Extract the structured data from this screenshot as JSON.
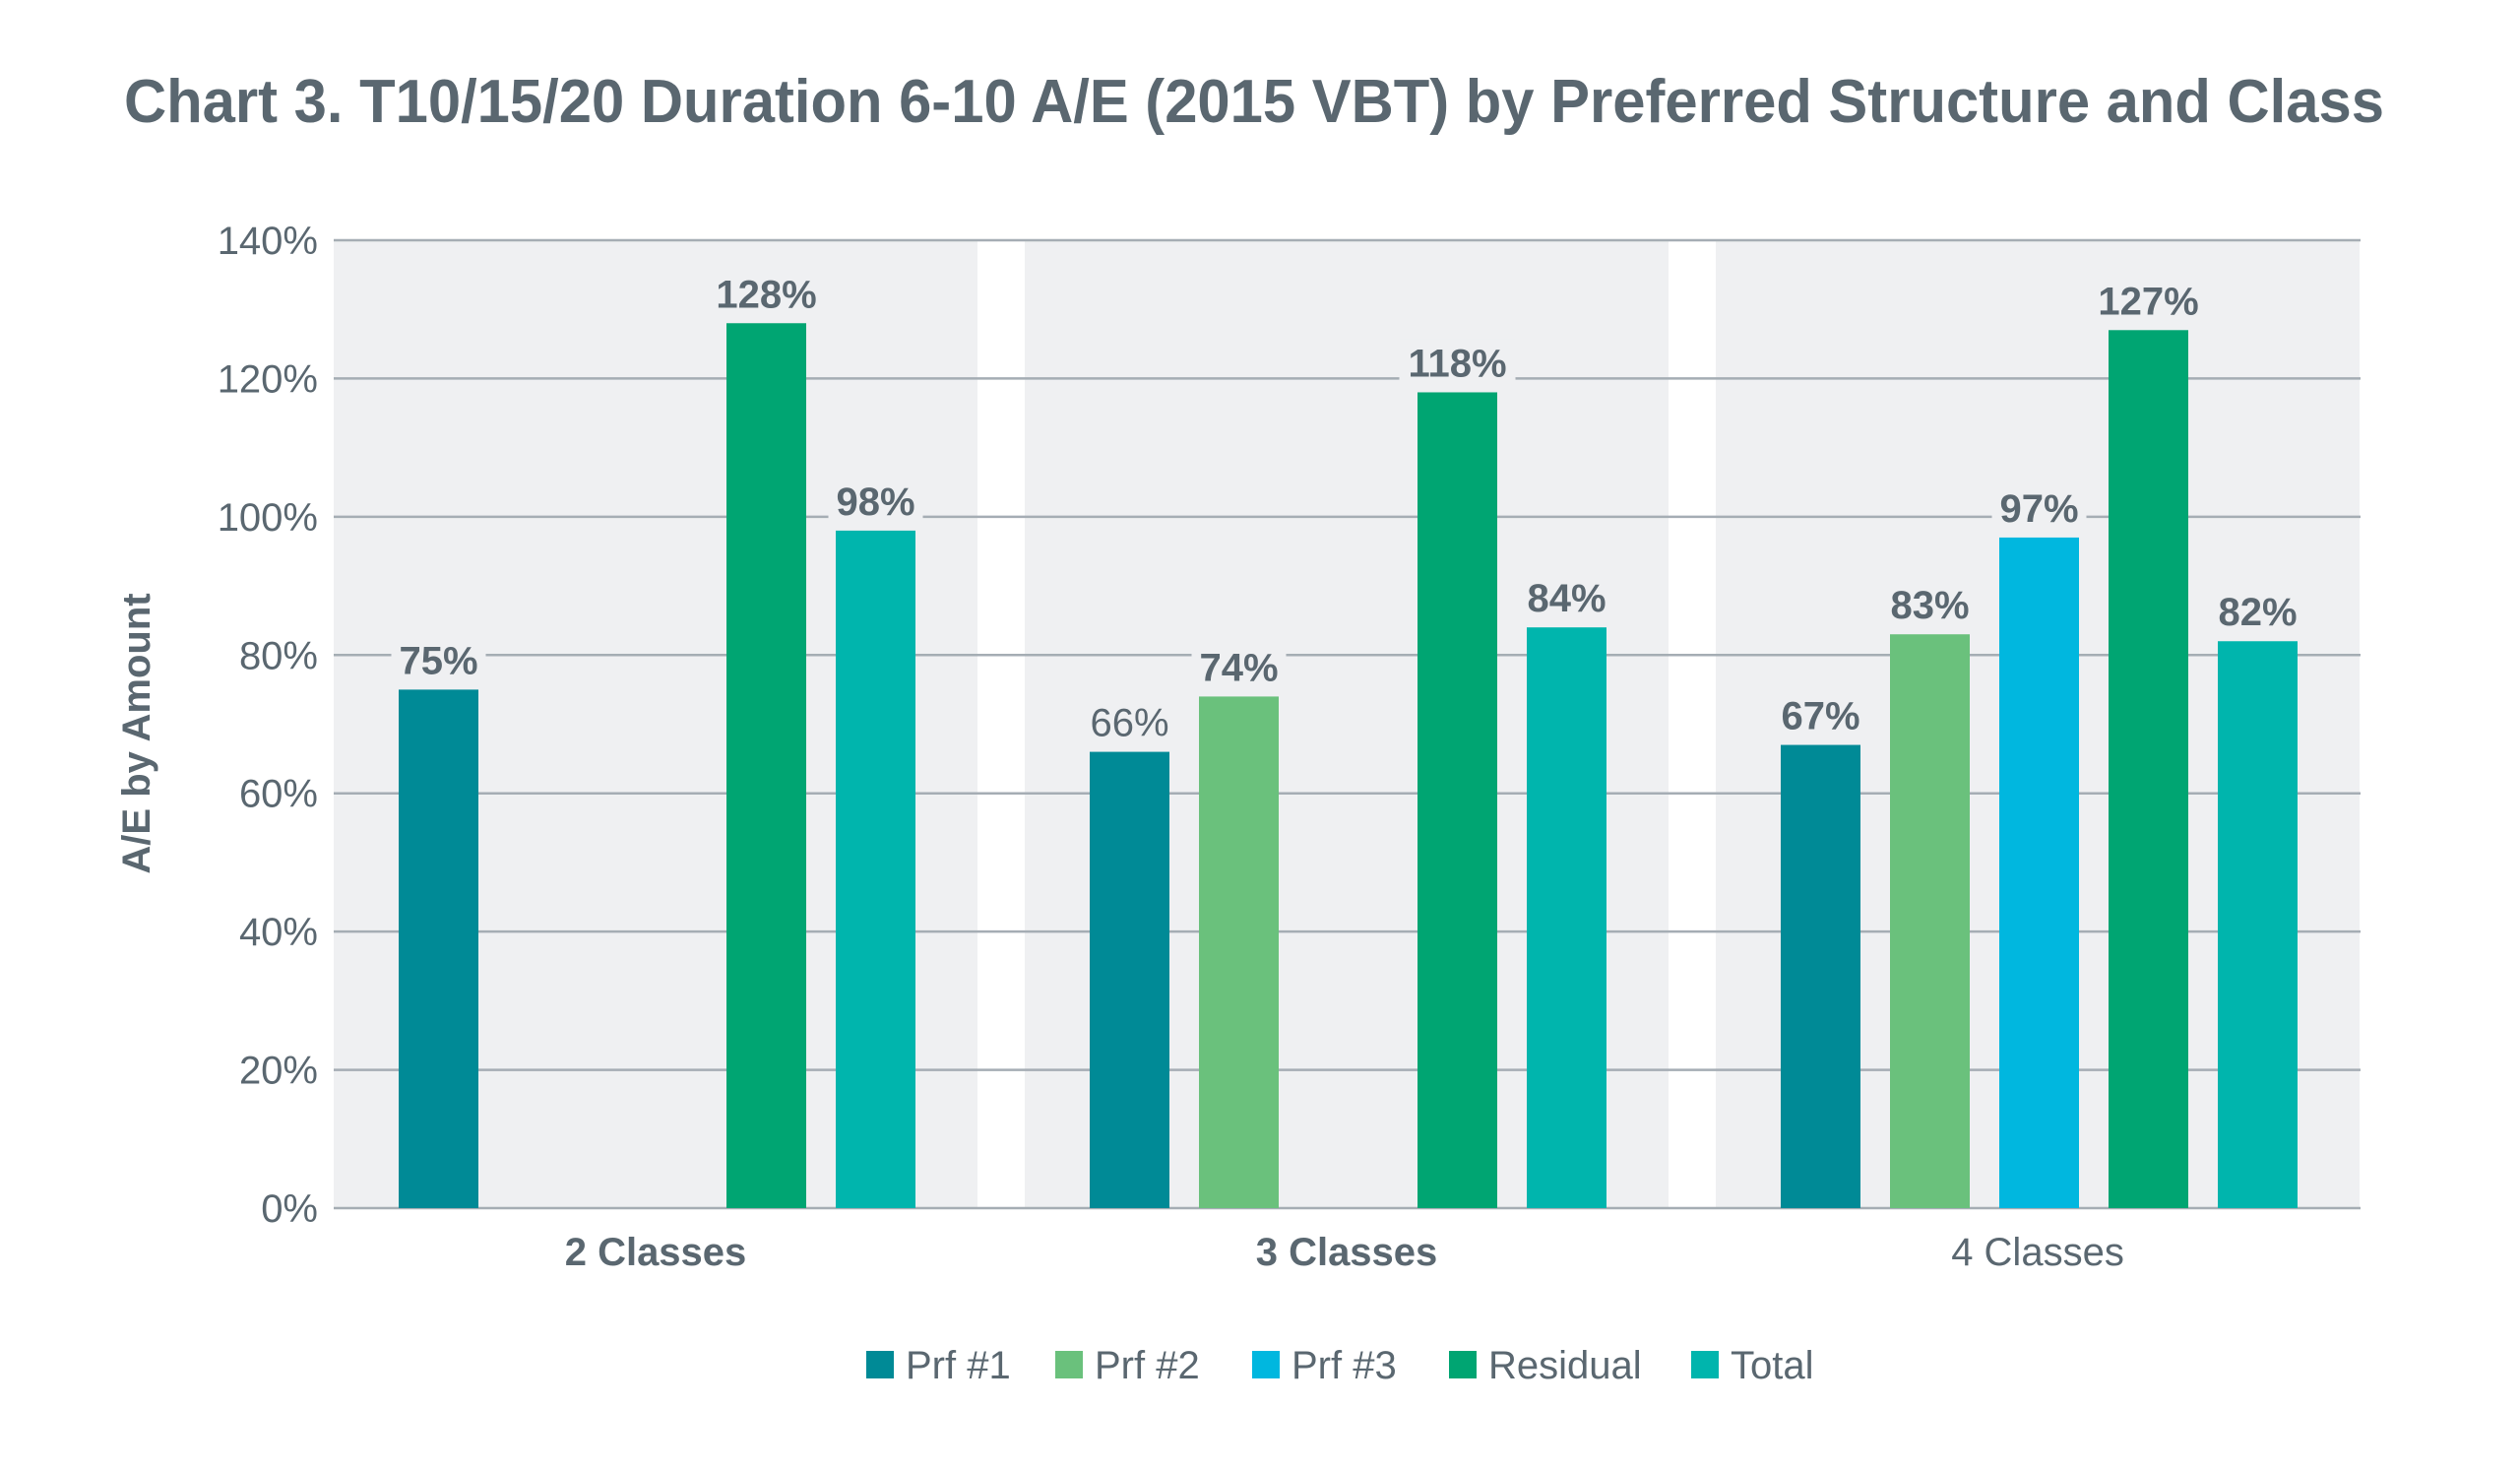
{
  "chart_data": {
    "type": "bar",
    "title": "Chart 3. T10/15/20 Duration 6-10 A/E (2015 VBT) by Preferred Structure and Class",
    "xlabel": "",
    "ylabel": "A/E by Amount",
    "ylim": [
      0,
      140
    ],
    "yticks": [
      0,
      20,
      40,
      60,
      80,
      100,
      120,
      140
    ],
    "ytick_labels": [
      "0%",
      "20%",
      "40%",
      "60%",
      "80%",
      "100%",
      "120%",
      "140%"
    ],
    "grid": true,
    "legend_position": "bottom-center",
    "categories": [
      "2 Classes",
      "3 Classes",
      "4 Classes"
    ],
    "category_label_bold": [
      true,
      true,
      false
    ],
    "series": [
      {
        "name": "Prf #1",
        "color": "#008a96",
        "values": [
          75,
          66,
          67
        ],
        "labels": [
          "75%",
          "66%",
          "67%"
        ],
        "label_bold": [
          true,
          false,
          true
        ]
      },
      {
        "name": "Prf #2",
        "color": "#6ac17c",
        "values": [
          null,
          74,
          83
        ],
        "labels": [
          null,
          "74%",
          "83%"
        ],
        "label_bold": [
          true,
          true,
          true
        ]
      },
      {
        "name": "Prf #3",
        "color": "#00b7df",
        "values": [
          null,
          null,
          97
        ],
        "labels": [
          null,
          null,
          "97%"
        ],
        "label_bold": [
          true,
          true,
          true
        ]
      },
      {
        "name": "Residual",
        "color": "#00a572",
        "values": [
          128,
          118,
          127
        ],
        "labels": [
          "128%",
          "118%",
          "127%"
        ],
        "label_bold": [
          true,
          true,
          true
        ]
      },
      {
        "name": "Total",
        "color": "#00b5ad",
        "values": [
          98,
          84,
          82
        ],
        "labels": [
          "98%",
          "84%",
          "82%"
        ],
        "label_bold": [
          true,
          true,
          true
        ]
      }
    ],
    "colors": {
      "text": "#5a6770",
      "plot_background": "#eff0f2",
      "gridline": "#a5adb4"
    }
  }
}
